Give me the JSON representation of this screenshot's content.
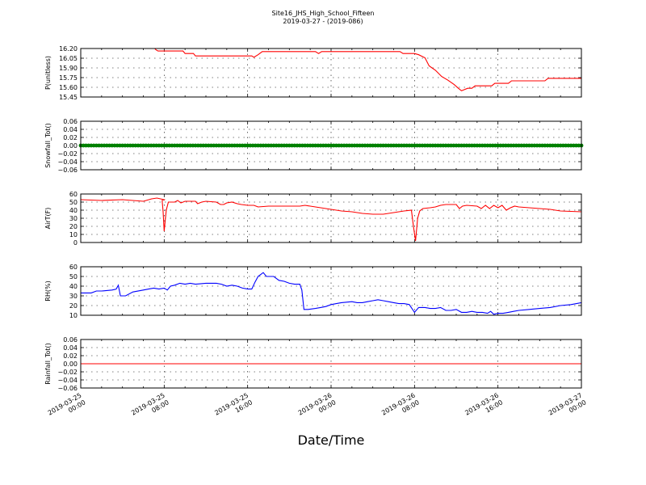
{
  "figure": {
    "title_line1": "Site16_JHS_High_School_Fifteen",
    "title_line2": "2019-03-27 - (2019-086)",
    "xlabel": "Date/Time",
    "x_tick_labels": [
      [
        "2019-03-25",
        "00:00"
      ],
      [
        "2019-03-25",
        "08:00"
      ],
      [
        "2019-03-25",
        "16:00"
      ],
      [
        "2019-03-26",
        "00:00"
      ],
      [
        "2019-03-26",
        "08:00"
      ],
      [
        "2019-03-26",
        "16:00"
      ],
      [
        "2019-03-27",
        "00:00"
      ]
    ]
  },
  "chart_data": [
    {
      "type": "line",
      "ylabel": "P(unitless)",
      "color": "#ff0000",
      "marker": "none",
      "ylim": [
        15.42,
        16.2
      ],
      "yticks": [
        "16.20",
        "16.05",
        "15.90",
        "15.75",
        "15.60",
        "15.45"
      ],
      "x_unit": "hours since 2019-03-25 00:00",
      "xlim": [
        0,
        48
      ],
      "grid": true,
      "points": [
        [
          7,
          16.22
        ],
        [
          7.2,
          16.18
        ],
        [
          7.4,
          16.16
        ],
        [
          9.8,
          16.16
        ],
        [
          10,
          16.12
        ],
        [
          10.8,
          16.12
        ],
        [
          11,
          16.08
        ],
        [
          13,
          16.08
        ],
        [
          16.4,
          16.08
        ],
        [
          16.6,
          16.06
        ],
        [
          17,
          16.1
        ],
        [
          17.4,
          16.15
        ],
        [
          22.5,
          16.15
        ],
        [
          22.8,
          16.12
        ],
        [
          23.1,
          16.15
        ],
        [
          28,
          16.15
        ],
        [
          30.6,
          16.15
        ],
        [
          30.9,
          16.12
        ],
        [
          32,
          16.12
        ],
        [
          32.4,
          16.1
        ],
        [
          33,
          16.05
        ],
        [
          33.4,
          15.92
        ],
        [
          34,
          15.85
        ],
        [
          34.6,
          15.75
        ],
        [
          35.2,
          15.69
        ],
        [
          35.8,
          15.62
        ],
        [
          36.2,
          15.56
        ],
        [
          36.5,
          15.52
        ],
        [
          36.8,
          15.54
        ],
        [
          37.1,
          15.56
        ],
        [
          37.5,
          15.56
        ],
        [
          37.8,
          15.6
        ],
        [
          39.4,
          15.6
        ],
        [
          39.7,
          15.64
        ],
        [
          41,
          15.64
        ],
        [
          41.3,
          15.68
        ],
        [
          44.5,
          15.68
        ],
        [
          44.8,
          15.72
        ],
        [
          46,
          15.72
        ],
        [
          48,
          15.72
        ]
      ]
    },
    {
      "type": "line",
      "ylabel": "Snowfall_Tot()",
      "color": "#008000",
      "marker": "dot",
      "ylim": [
        -0.06,
        0.06
      ],
      "yticks": [
        "0.06",
        "0.04",
        "0.02",
        "0.00",
        "−0.02",
        "−0.04",
        "−0.06"
      ],
      "x_unit": "hours since 2019-03-25 00:00",
      "xlim": [
        0,
        48
      ],
      "grid": true,
      "points": [
        [
          0,
          0
        ],
        [
          48,
          0
        ]
      ]
    },
    {
      "type": "line",
      "ylabel": "AirT(F)",
      "color": "#ff0000",
      "marker": "none",
      "ylim": [
        0,
        60
      ],
      "yticks": [
        "60",
        "50",
        "40",
        "30",
        "20",
        "10",
        "0"
      ],
      "x_unit": "hours since 2019-03-25 00:00",
      "xlim": [
        0,
        48
      ],
      "grid": true,
      "points": [
        [
          0,
          53
        ],
        [
          2,
          52
        ],
        [
          4,
          53
        ],
        [
          5,
          52
        ],
        [
          6,
          51
        ],
        [
          6.8,
          54
        ],
        [
          7.3,
          55
        ],
        [
          8,
          53
        ],
        [
          7.8,
          52
        ],
        [
          7.9,
          38
        ],
        [
          8,
          14
        ],
        [
          8.2,
          40
        ],
        [
          8.4,
          50
        ],
        [
          9,
          50
        ],
        [
          9.3,
          52
        ],
        [
          9.6,
          49
        ],
        [
          10,
          51
        ],
        [
          11,
          51
        ],
        [
          11.2,
          48
        ],
        [
          11.6,
          50
        ],
        [
          12,
          51
        ],
        [
          13,
          50
        ],
        [
          13.4,
          47
        ],
        [
          13.7,
          47
        ],
        [
          14,
          49
        ],
        [
          14.5,
          50
        ],
        [
          15,
          48
        ],
        [
          15.4,
          47
        ],
        [
          16,
          46
        ],
        [
          16.6,
          46
        ],
        [
          17,
          44
        ],
        [
          18,
          45
        ],
        [
          21,
          45
        ],
        [
          21.5,
          46
        ],
        [
          22,
          45
        ],
        [
          23,
          43
        ],
        [
          24,
          41
        ],
        [
          25,
          39
        ],
        [
          26,
          38
        ],
        [
          27,
          36
        ],
        [
          28,
          35
        ],
        [
          29,
          35
        ],
        [
          30,
          37
        ],
        [
          31,
          39
        ],
        [
          31.7,
          40
        ],
        [
          31.9,
          20
        ],
        [
          32.1,
          2
        ],
        [
          32.3,
          30
        ],
        [
          32.5,
          39
        ],
        [
          32.8,
          42
        ],
        [
          33.5,
          43
        ],
        [
          34,
          44
        ],
        [
          34.5,
          46
        ],
        [
          35,
          47
        ],
        [
          36,
          47
        ],
        [
          36.3,
          42
        ],
        [
          36.6,
          45
        ],
        [
          37,
          46
        ],
        [
          38,
          45
        ],
        [
          38.4,
          42
        ],
        [
          38.8,
          46
        ],
        [
          39.2,
          42
        ],
        [
          39.6,
          46
        ],
        [
          40,
          43
        ],
        [
          40.4,
          46
        ],
        [
          40.8,
          40
        ],
        [
          41.2,
          43
        ],
        [
          41.6,
          45
        ],
        [
          42,
          44
        ],
        [
          43,
          43
        ],
        [
          44,
          42
        ],
        [
          45,
          41
        ],
        [
          46,
          39
        ],
        [
          48,
          38
        ]
      ]
    },
    {
      "type": "line",
      "ylabel": "RH(%)",
      "color": "#0000ff",
      "marker": "none",
      "ylim": [
        10,
        60
      ],
      "yticks": [
        "60",
        "50",
        "40",
        "30",
        "20",
        "10"
      ],
      "x_unit": "hours since 2019-03-25 00:00",
      "xlim": [
        0,
        48
      ],
      "grid": true,
      "points": [
        [
          0,
          33
        ],
        [
          1,
          33
        ],
        [
          1.5,
          35
        ],
        [
          2,
          35
        ],
        [
          3,
          36
        ],
        [
          3.4,
          37
        ],
        [
          3.6,
          41
        ],
        [
          3.8,
          30
        ],
        [
          4.3,
          30
        ],
        [
          5,
          34
        ],
        [
          6,
          36
        ],
        [
          6.5,
          37
        ],
        [
          7,
          38
        ],
        [
          7.5,
          37
        ],
        [
          8,
          38
        ],
        [
          8.3,
          36
        ],
        [
          8.6,
          40
        ],
        [
          9,
          41
        ],
        [
          9.5,
          43
        ],
        [
          10,
          42
        ],
        [
          10.5,
          43
        ],
        [
          11,
          42
        ],
        [
          12,
          43
        ],
        [
          12.5,
          43
        ],
        [
          13,
          43
        ],
        [
          13.5,
          42
        ],
        [
          14,
          40
        ],
        [
          14.5,
          41
        ],
        [
          15,
          40
        ],
        [
          15.5,
          38
        ],
        [
          16,
          37
        ],
        [
          16.4,
          37
        ],
        [
          16.7,
          44
        ],
        [
          17,
          50
        ],
        [
          17.5,
          54
        ],
        [
          17.8,
          50
        ],
        [
          18,
          50
        ],
        [
          18.5,
          50
        ],
        [
          19,
          46
        ],
        [
          19.5,
          45
        ],
        [
          20,
          43
        ],
        [
          20.5,
          42
        ],
        [
          21,
          42
        ],
        [
          21.2,
          36
        ],
        [
          21.4,
          16
        ],
        [
          21.8,
          16
        ],
        [
          22.5,
          17
        ],
        [
          23,
          18
        ],
        [
          23.5,
          19
        ],
        [
          24,
          21
        ],
        [
          24.5,
          22
        ],
        [
          25,
          23
        ],
        [
          26,
          24
        ],
        [
          26.5,
          23
        ],
        [
          27,
          23
        ],
        [
          27.5,
          24
        ],
        [
          28,
          25
        ],
        [
          28.5,
          26
        ],
        [
          29,
          25
        ],
        [
          29.5,
          24
        ],
        [
          30,
          23
        ],
        [
          30.5,
          22
        ],
        [
          31,
          22
        ],
        [
          31.5,
          21
        ],
        [
          32,
          13
        ],
        [
          32.4,
          18
        ],
        [
          33,
          18
        ],
        [
          33.5,
          17
        ],
        [
          34,
          17
        ],
        [
          34.5,
          18
        ],
        [
          35,
          15
        ],
        [
          35.5,
          15
        ],
        [
          36,
          16
        ],
        [
          36.5,
          13
        ],
        [
          37,
          13
        ],
        [
          37.5,
          14
        ],
        [
          38,
          13
        ],
        [
          38.5,
          13
        ],
        [
          39,
          12
        ],
        [
          39.3,
          14
        ],
        [
          39.6,
          11
        ],
        [
          40,
          12
        ],
        [
          40.5,
          12
        ],
        [
          41,
          13
        ],
        [
          41.5,
          14
        ],
        [
          42,
          15
        ],
        [
          43,
          16
        ],
        [
          44,
          17
        ],
        [
          45,
          18
        ],
        [
          46,
          20
        ],
        [
          47,
          21
        ],
        [
          48,
          23
        ]
      ]
    },
    {
      "type": "line",
      "ylabel": "Rainfall_Tot()",
      "color": "#ff0000",
      "marker": "none",
      "ylim": [
        -0.06,
        0.06
      ],
      "yticks": [
        "0.06",
        "0.04",
        "0.02",
        "0.00",
        "−0.02",
        "−0.04",
        "−0.06"
      ],
      "x_unit": "hours since 2019-03-25 00:00",
      "xlim": [
        0,
        48
      ],
      "grid": true,
      "points": [
        [
          0,
          0
        ],
        [
          48,
          0
        ]
      ]
    }
  ]
}
